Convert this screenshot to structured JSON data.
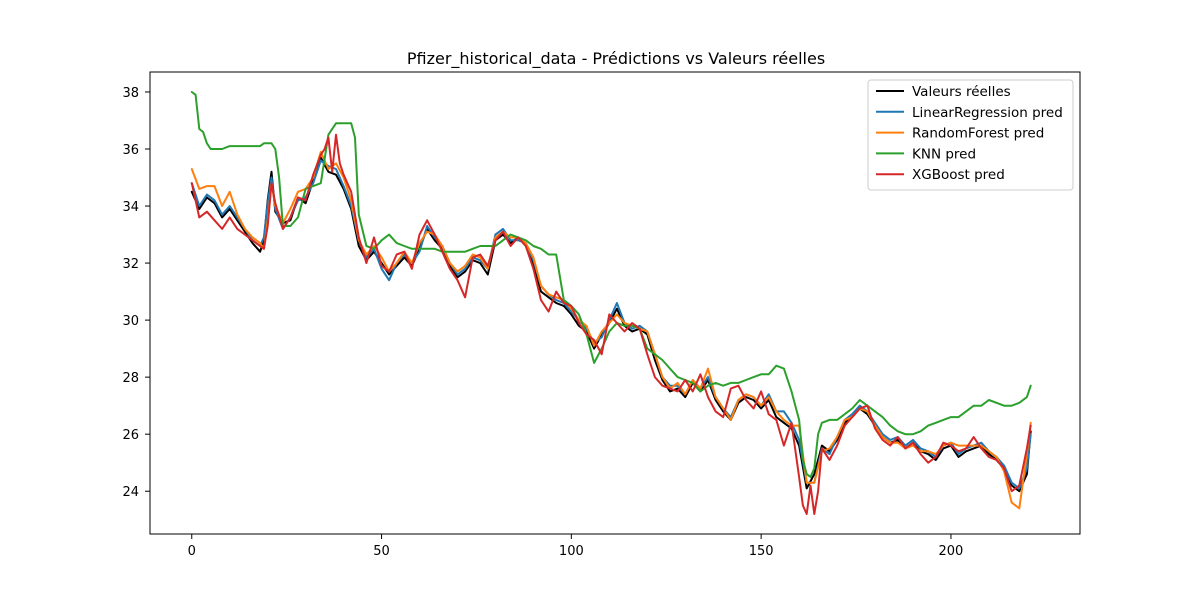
{
  "chart_data": {
    "type": "line",
    "title": "Pfizer_historical_data - Prédictions vs Valeurs réelles",
    "xlabel": "",
    "ylabel": "",
    "xlim": [
      -11,
      234
    ],
    "ylim": [
      22.5,
      38.7
    ],
    "xticks": [
      0,
      50,
      100,
      150,
      200
    ],
    "yticks": [
      24,
      26,
      28,
      30,
      32,
      34,
      36,
      38
    ],
    "grid": false,
    "legend_position": "top-right",
    "series": [
      {
        "name": "Valeurs réelles",
        "color": "#000000",
        "x": [
          0,
          2,
          4,
          6,
          8,
          10,
          12,
          14,
          16,
          18,
          19,
          20,
          21,
          22,
          24,
          26,
          28,
          30,
          32,
          34,
          36,
          38,
          40,
          42,
          44,
          46,
          48,
          50,
          52,
          54,
          56,
          58,
          60,
          62,
          64,
          66,
          68,
          70,
          72,
          74,
          76,
          78,
          80,
          82,
          84,
          86,
          88,
          90,
          92,
          94,
          96,
          98,
          100,
          102,
          104,
          106,
          108,
          110,
          112,
          114,
          116,
          118,
          120,
          122,
          124,
          126,
          128,
          130,
          132,
          134,
          136,
          138,
          140,
          142,
          144,
          146,
          148,
          150,
          152,
          154,
          156,
          158,
          160,
          162,
          164,
          166,
          168,
          170,
          172,
          174,
          176,
          178,
          180,
          182,
          184,
          186,
          188,
          190,
          192,
          194,
          196,
          198,
          200,
          202,
          204,
          206,
          208,
          210,
          212,
          214,
          216,
          218,
          220,
          221
        ],
        "y": [
          34.5,
          33.9,
          34.3,
          34.1,
          33.6,
          33.9,
          33.5,
          33.1,
          32.7,
          32.4,
          32.8,
          34.2,
          35.2,
          33.8,
          33.4,
          33.5,
          34.3,
          34.1,
          34.9,
          35.7,
          35.2,
          35.1,
          34.6,
          33.9,
          32.6,
          32.1,
          32.4,
          32.0,
          31.6,
          31.9,
          32.2,
          31.9,
          32.5,
          33.2,
          32.8,
          32.5,
          31.9,
          31.5,
          31.7,
          32.1,
          32.0,
          31.6,
          32.8,
          33.0,
          32.7,
          32.9,
          32.6,
          32.0,
          31.0,
          30.8,
          30.6,
          30.5,
          30.2,
          29.8,
          29.6,
          29.0,
          29.5,
          29.9,
          30.4,
          29.8,
          29.6,
          29.7,
          29.5,
          28.6,
          27.9,
          27.5,
          27.6,
          27.3,
          27.8,
          27.5,
          27.9,
          27.2,
          26.8,
          26.5,
          27.1,
          27.3,
          27.2,
          26.9,
          27.2,
          26.6,
          26.4,
          26.2,
          25.6,
          24.1,
          24.6,
          25.6,
          25.4,
          25.8,
          26.4,
          26.6,
          26.9,
          26.7,
          26.3,
          25.9,
          25.7,
          25.8,
          25.5,
          25.7,
          25.4,
          25.3,
          25.1,
          25.5,
          25.6,
          25.2,
          25.4,
          25.5,
          25.6,
          25.3,
          25.1,
          24.8,
          24.2,
          24.0,
          24.6,
          26.1
        ]
      },
      {
        "name": "LinearRegression pred",
        "color": "#1f77b4",
        "x": [
          0,
          2,
          4,
          6,
          8,
          10,
          12,
          14,
          16,
          18,
          19,
          20,
          21,
          22,
          24,
          26,
          28,
          30,
          32,
          34,
          36,
          38,
          40,
          42,
          44,
          46,
          48,
          50,
          52,
          54,
          56,
          58,
          60,
          62,
          64,
          66,
          68,
          70,
          72,
          74,
          76,
          78,
          80,
          82,
          84,
          86,
          88,
          90,
          92,
          94,
          96,
          98,
          100,
          102,
          104,
          106,
          108,
          110,
          112,
          114,
          116,
          118,
          120,
          122,
          124,
          126,
          128,
          130,
          132,
          134,
          136,
          138,
          140,
          142,
          144,
          146,
          148,
          150,
          152,
          154,
          156,
          158,
          160,
          162,
          164,
          166,
          168,
          170,
          172,
          174,
          176,
          178,
          180,
          182,
          184,
          186,
          188,
          190,
          192,
          194,
          196,
          198,
          200,
          202,
          204,
          206,
          208,
          210,
          212,
          214,
          216,
          218,
          220,
          221
        ],
        "y": [
          34.8,
          34.0,
          34.4,
          34.2,
          33.7,
          34.0,
          33.6,
          33.2,
          32.8,
          32.6,
          32.9,
          34.1,
          35.0,
          33.9,
          33.2,
          33.6,
          34.2,
          34.3,
          34.8,
          35.6,
          35.4,
          35.3,
          34.7,
          34.0,
          32.8,
          32.2,
          32.5,
          31.8,
          31.4,
          32.0,
          32.3,
          32.0,
          32.4,
          33.3,
          32.9,
          32.6,
          32.0,
          31.6,
          31.8,
          32.2,
          32.1,
          31.8,
          33.0,
          33.2,
          32.8,
          32.8,
          32.7,
          32.1,
          31.2,
          30.9,
          30.7,
          30.6,
          30.3,
          30.0,
          29.7,
          29.2,
          29.4,
          30.0,
          30.6,
          29.9,
          29.7,
          29.8,
          29.6,
          28.8,
          28.0,
          27.7,
          27.7,
          27.4,
          27.9,
          27.6,
          28.0,
          27.3,
          26.9,
          26.6,
          27.2,
          27.4,
          27.3,
          27.0,
          27.4,
          26.8,
          26.8,
          26.4,
          25.8,
          24.3,
          24.3,
          25.5,
          25.3,
          25.9,
          26.5,
          26.7,
          27.0,
          26.8,
          26.4,
          26.0,
          25.8,
          25.9,
          25.6,
          25.8,
          25.5,
          25.4,
          25.2,
          25.6,
          25.7,
          25.3,
          25.5,
          25.6,
          25.7,
          25.4,
          25.2,
          24.9,
          24.3,
          24.1,
          24.8,
          26.0
        ]
      },
      {
        "name": "RandomForest pred",
        "color": "#ff7f0e",
        "x": [
          0,
          2,
          4,
          6,
          8,
          10,
          12,
          14,
          16,
          18,
          19,
          20,
          21,
          22,
          24,
          26,
          28,
          30,
          32,
          34,
          36,
          38,
          40,
          42,
          44,
          46,
          48,
          50,
          52,
          54,
          56,
          58,
          60,
          62,
          64,
          66,
          68,
          70,
          72,
          74,
          76,
          78,
          80,
          82,
          84,
          86,
          88,
          90,
          92,
          94,
          96,
          98,
          100,
          102,
          104,
          106,
          108,
          110,
          112,
          114,
          116,
          118,
          120,
          122,
          124,
          126,
          128,
          130,
          132,
          134,
          136,
          138,
          140,
          142,
          144,
          146,
          148,
          150,
          152,
          154,
          156,
          158,
          160,
          162,
          164,
          166,
          168,
          170,
          172,
          174,
          176,
          178,
          180,
          182,
          184,
          186,
          188,
          190,
          192,
          194,
          196,
          198,
          200,
          202,
          204,
          206,
          208,
          210,
          212,
          214,
          216,
          218,
          220,
          221
        ],
        "y": [
          35.3,
          34.6,
          34.7,
          34.7,
          34.0,
          34.5,
          33.7,
          33.2,
          32.9,
          32.7,
          32.5,
          33.5,
          34.8,
          34.0,
          33.4,
          33.9,
          34.5,
          34.6,
          35.0,
          35.9,
          35.3,
          35.5,
          35.0,
          34.2,
          32.8,
          32.3,
          32.6,
          32.2,
          31.7,
          32.0,
          32.4,
          32.0,
          32.7,
          33.1,
          33.0,
          32.6,
          32.0,
          31.7,
          31.9,
          32.3,
          32.2,
          31.8,
          32.9,
          33.1,
          32.9,
          32.9,
          32.7,
          32.2,
          31.2,
          30.9,
          30.8,
          30.7,
          30.4,
          30.0,
          29.8,
          29.1,
          29.6,
          29.9,
          30.2,
          29.9,
          29.8,
          29.7,
          29.6,
          28.8,
          28.0,
          27.6,
          27.8,
          27.4,
          27.9,
          27.6,
          28.3,
          27.3,
          26.9,
          26.5,
          27.2,
          27.4,
          27.3,
          27.0,
          27.3,
          26.8,
          26.5,
          26.3,
          26.3,
          24.3,
          24.3,
          25.4,
          25.5,
          25.9,
          26.5,
          26.6,
          26.9,
          26.8,
          26.3,
          25.9,
          25.7,
          25.7,
          25.5,
          25.6,
          25.4,
          25.4,
          25.3,
          25.6,
          25.7,
          25.6,
          25.6,
          25.6,
          25.6,
          25.4,
          25.2,
          24.7,
          23.6,
          23.4,
          25.3,
          26.4
        ]
      },
      {
        "name": "KNN pred",
        "color": "#2ca02c",
        "x": [
          0,
          1,
          2,
          3,
          4,
          5,
          6,
          8,
          10,
          12,
          14,
          16,
          18,
          19,
          20,
          21,
          22,
          23,
          24,
          26,
          28,
          30,
          32,
          34,
          36,
          38,
          40,
          42,
          43,
          44,
          46,
          48,
          50,
          52,
          54,
          56,
          58,
          60,
          62,
          64,
          66,
          68,
          70,
          72,
          74,
          76,
          78,
          80,
          82,
          84,
          86,
          88,
          90,
          92,
          94,
          96,
          98,
          100,
          102,
          104,
          106,
          108,
          110,
          112,
          114,
          116,
          118,
          120,
          122,
          124,
          126,
          128,
          130,
          132,
          134,
          136,
          138,
          140,
          142,
          144,
          146,
          148,
          150,
          152,
          154,
          156,
          158,
          160,
          161,
          162,
          163,
          164,
          165,
          166,
          168,
          170,
          172,
          174,
          176,
          178,
          180,
          182,
          184,
          186,
          188,
          190,
          192,
          194,
          196,
          198,
          200,
          202,
          204,
          206,
          208,
          210,
          212,
          214,
          216,
          218,
          220,
          221
        ],
        "y": [
          38.0,
          37.9,
          36.7,
          36.6,
          36.2,
          36.0,
          36.0,
          36.0,
          36.1,
          36.1,
          36.1,
          36.1,
          36.1,
          36.2,
          36.2,
          36.2,
          36.0,
          35.0,
          33.3,
          33.3,
          33.6,
          34.6,
          34.7,
          34.8,
          36.5,
          36.9,
          36.9,
          36.9,
          36.4,
          33.7,
          32.6,
          32.5,
          32.8,
          33.0,
          32.7,
          32.6,
          32.5,
          32.5,
          32.5,
          32.5,
          32.4,
          32.4,
          32.4,
          32.4,
          32.5,
          32.6,
          32.6,
          32.6,
          32.8,
          33.0,
          32.9,
          32.8,
          32.6,
          32.5,
          32.3,
          32.3,
          30.7,
          30.5,
          30.2,
          29.5,
          28.5,
          29.0,
          29.6,
          29.9,
          29.8,
          29.8,
          29.7,
          29.0,
          28.8,
          28.6,
          28.3,
          28.0,
          27.9,
          27.8,
          27.5,
          27.7,
          27.8,
          27.7,
          27.8,
          27.8,
          27.9,
          28.0,
          28.1,
          28.1,
          28.4,
          28.3,
          27.5,
          26.5,
          25.1,
          24.6,
          24.5,
          24.8,
          26.0,
          26.4,
          26.5,
          26.5,
          26.7,
          26.9,
          27.2,
          27.0,
          26.8,
          26.6,
          26.3,
          26.1,
          26.0,
          26.0,
          26.1,
          26.3,
          26.4,
          26.5,
          26.6,
          26.6,
          26.8,
          27.0,
          27.0,
          27.2,
          27.1,
          27.0,
          27.0,
          27.1,
          27.3,
          27.7
        ]
      },
      {
        "name": "XGBoost pred",
        "color": "#d62728",
        "x": [
          0,
          2,
          4,
          6,
          8,
          10,
          12,
          14,
          16,
          18,
          19,
          20,
          21,
          22,
          24,
          26,
          28,
          30,
          32,
          34,
          35,
          36,
          37,
          38,
          39,
          40,
          42,
          44,
          46,
          48,
          50,
          52,
          54,
          56,
          58,
          60,
          62,
          64,
          66,
          68,
          70,
          72,
          74,
          76,
          78,
          80,
          82,
          84,
          86,
          88,
          90,
          92,
          94,
          96,
          98,
          100,
          102,
          104,
          106,
          108,
          110,
          112,
          114,
          116,
          118,
          120,
          122,
          124,
          126,
          128,
          130,
          132,
          134,
          136,
          138,
          140,
          142,
          144,
          146,
          148,
          150,
          152,
          154,
          156,
          158,
          160,
          161,
          162,
          163,
          164,
          165,
          166,
          168,
          170,
          172,
          174,
          176,
          178,
          180,
          182,
          184,
          186,
          188,
          190,
          192,
          194,
          196,
          198,
          200,
          202,
          204,
          206,
          208,
          210,
          212,
          214,
          216,
          218,
          220,
          221
        ],
        "y": [
          34.8,
          33.6,
          33.8,
          33.5,
          33.2,
          33.6,
          33.2,
          33.0,
          32.8,
          32.6,
          32.5,
          33.3,
          34.8,
          34.1,
          33.2,
          33.6,
          34.3,
          34.2,
          35.1,
          35.8,
          36.0,
          36.4,
          35.2,
          36.5,
          35.5,
          35.1,
          34.5,
          32.9,
          32.0,
          32.9,
          31.9,
          31.7,
          32.3,
          32.4,
          31.8,
          33.0,
          33.5,
          33.0,
          32.4,
          31.8,
          31.4,
          30.8,
          32.2,
          32.3,
          31.9,
          32.8,
          33.1,
          32.6,
          32.9,
          32.6,
          31.8,
          30.7,
          30.3,
          31.0,
          30.6,
          30.5,
          29.9,
          29.5,
          29.3,
          28.8,
          30.2,
          29.9,
          29.6,
          29.9,
          29.7,
          28.8,
          28.0,
          27.7,
          27.6,
          27.5,
          27.9,
          27.5,
          28.1,
          27.3,
          26.8,
          26.6,
          27.6,
          27.7,
          27.2,
          26.9,
          27.5,
          26.7,
          26.5,
          25.6,
          26.4,
          24.5,
          23.5,
          23.2,
          24.2,
          23.2,
          24.0,
          25.5,
          25.1,
          25.6,
          26.3,
          26.6,
          26.9,
          27.0,
          26.2,
          25.8,
          25.6,
          25.9,
          25.5,
          25.7,
          25.3,
          25.0,
          25.2,
          25.7,
          25.6,
          25.4,
          25.5,
          25.9,
          25.5,
          25.2,
          25.1,
          24.8,
          24.0,
          24.2,
          25.5,
          26.3
        ]
      }
    ]
  }
}
